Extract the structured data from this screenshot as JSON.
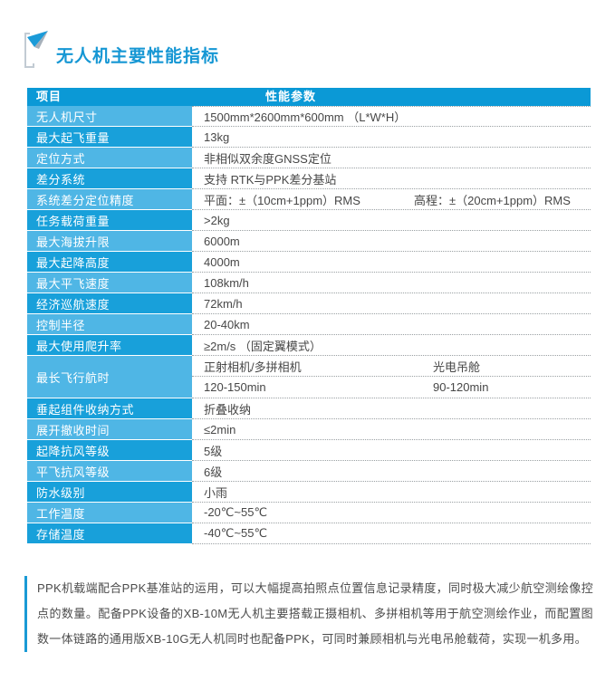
{
  "page": {
    "title": "无人机主要性能指标"
  },
  "colors": {
    "header_bg": "#0b99d6",
    "row_label_dark": "#18a0da",
    "row_label_light": "#4fb6e5",
    "title_blue": "#1697d4",
    "accent_bar": "#1a9ad5",
    "dotted_border": "#9aa0a3",
    "value_text": "#474747"
  },
  "table": {
    "headers": {
      "item": "项目",
      "param": "性能参数"
    },
    "rows": [
      {
        "label": "无人机尺寸",
        "value": "1500mm*2600mm*600mm （L*W*H）"
      },
      {
        "label": "最大起飞重量",
        "value": "13kg"
      },
      {
        "label": "定位方式",
        "value": "非相似双余度GNSS定位"
      },
      {
        "label": "差分系统",
        "value": "支持 RTK与PPK差分基站"
      },
      {
        "label": "系统差分定位精度",
        "value_left": "平面：±（10cm+1ppm）RMS",
        "value_right": "高程：±（20cm+1ppm）RMS"
      },
      {
        "label": "任务载荷重量",
        "value": ">2kg"
      },
      {
        "label": "最大海拔升限",
        "value": "6000m"
      },
      {
        "label": "最大起降高度",
        "value": "4000m"
      },
      {
        "label": "最大平飞速度",
        "value": "108km/h"
      },
      {
        "label": "经济巡航速度",
        "value": "72km/h"
      },
      {
        "label": "控制半径",
        "value": "20-40km"
      },
      {
        "label": "最大使用爬升率",
        "value": "≥2m/s （固定翼模式）"
      },
      {
        "label": "最长飞行航时",
        "lines": [
          [
            "正射相机/多拼相机",
            "光电吊舱"
          ],
          [
            "120-150min",
            "90-120min"
          ]
        ]
      },
      {
        "label": "垂起组件收纳方式",
        "value": "折叠收纳"
      },
      {
        "label": "展开撤收时间",
        "value": "≤2min"
      },
      {
        "label": "起降抗风等级",
        "value": "5级"
      },
      {
        "label": "平飞抗风等级",
        "value": "6级"
      },
      {
        "label": "防水级别",
        "value": "小雨"
      },
      {
        "label": "工作温度",
        "value": "-20℃~55℃"
      },
      {
        "label": "存储温度",
        "value": "-40℃~55℃"
      }
    ]
  },
  "footer": {
    "text": "PPK机载端配合PPK基准站的运用，可以大幅提高拍照点位置信息记录精度，同时极大减少航空测绘像控点的数量。配备PPK设备的XB-10M无人机主要搭载正摄相机、多拼相机等用于航空测绘作业，而配置图数一体链路的通用版XB-10G无人机同时也配备PPK，可同时兼顾相机与光电吊舱载荷，实现一机多用。"
  }
}
